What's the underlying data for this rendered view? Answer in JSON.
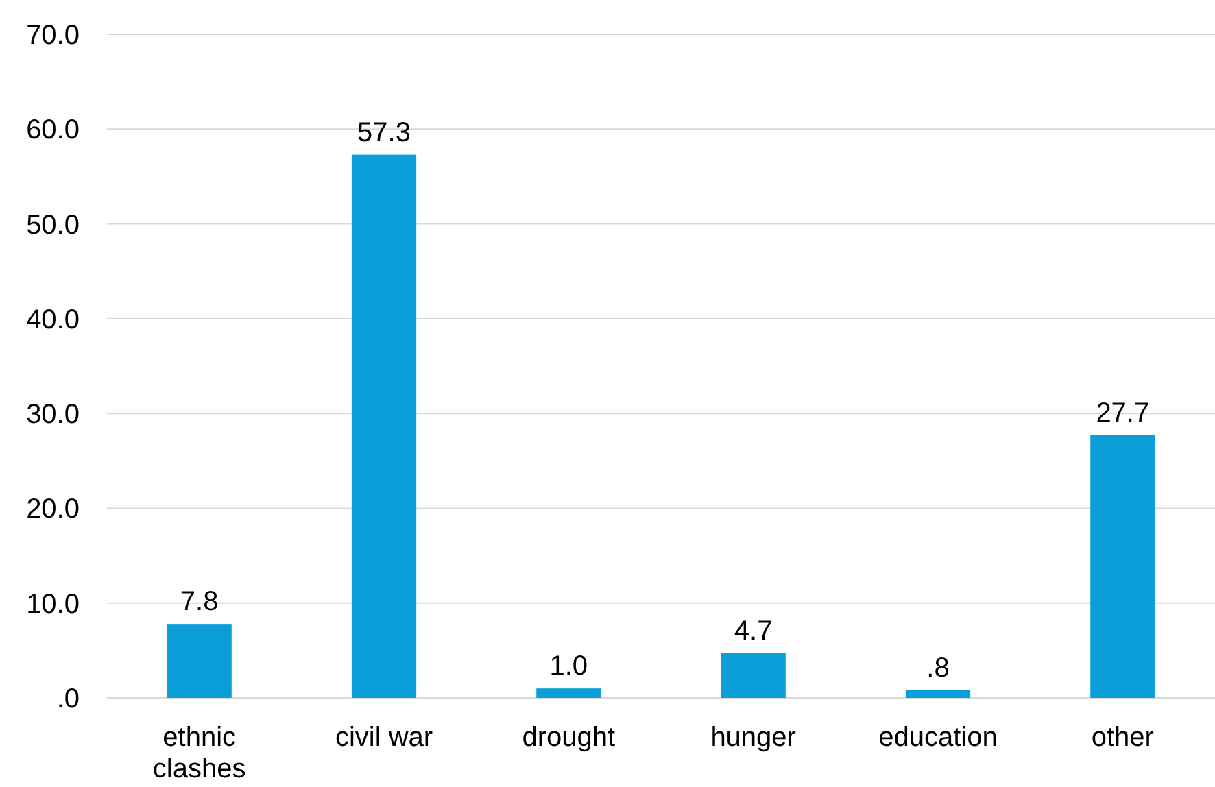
{
  "chart_data": {
    "type": "bar",
    "categories": [
      "ethnic clashes",
      "civil war",
      "drought",
      "hunger",
      "education",
      "other"
    ],
    "values": [
      7.8,
      57.3,
      1.0,
      4.7,
      0.8,
      27.7
    ],
    "value_labels": [
      "7.8",
      "57.3",
      "1.0",
      "4.7",
      ".8",
      "27.7"
    ],
    "color": "#0c9ed9",
    "ylim": [
      0,
      70
    ],
    "yticks": [
      {
        "value": 0,
        "label": ".0"
      },
      {
        "value": 10,
        "label": "10.0"
      },
      {
        "value": 20,
        "label": "20.0"
      },
      {
        "value": 30,
        "label": "30.0"
      },
      {
        "value": 40,
        "label": "40.0"
      },
      {
        "value": 50,
        "label": "50.0"
      },
      {
        "value": 60,
        "label": "60.0"
      },
      {
        "value": 70,
        "label": "70.0"
      }
    ],
    "grid": "y"
  }
}
